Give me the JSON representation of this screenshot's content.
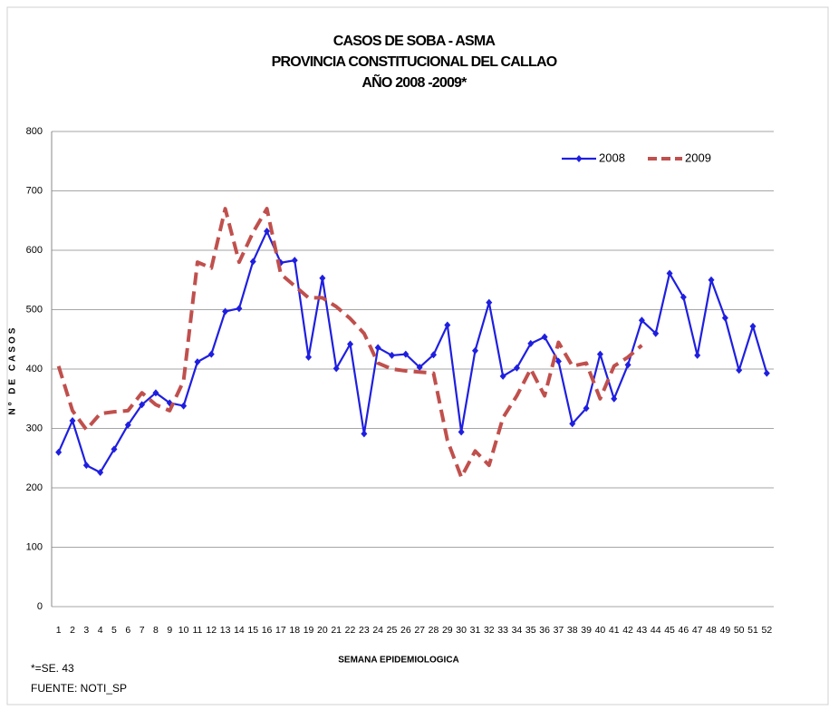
{
  "chart_data": {
    "type": "line",
    "title": [
      "CASOS DE SOBA -  ASMA",
      "PROVINCIA CONSTITUCIONAL DEL CALLAO",
      "AÑO 2008 -2009*"
    ],
    "x_label": "SEMANA EPIDEMIOLOGICA",
    "y_label": "Nº DE CASOS",
    "categories": [
      1,
      2,
      3,
      4,
      5,
      6,
      7,
      8,
      9,
      10,
      11,
      12,
      13,
      14,
      15,
      16,
      17,
      18,
      19,
      20,
      21,
      22,
      23,
      24,
      25,
      26,
      27,
      28,
      29,
      30,
      31,
      32,
      33,
      34,
      35,
      36,
      37,
      38,
      39,
      40,
      41,
      42,
      43,
      44,
      45,
      46,
      47,
      48,
      49,
      50,
      51,
      52
    ],
    "series": [
      {
        "name": "2008",
        "color": "#1f1fe0",
        "style": "solid",
        "marker": "diamond",
        "values": [
          260,
          313,
          238,
          226,
          265,
          306,
          340,
          360,
          343,
          338,
          412,
          425,
          497,
          502,
          581,
          632,
          579,
          583,
          420,
          553,
          401,
          442,
          291,
          436,
          423,
          425,
          403,
          424,
          474,
          294,
          431,
          512,
          388,
          402,
          443,
          454,
          413,
          308,
          334,
          425,
          350,
          407,
          482,
          460,
          561,
          521,
          423,
          550,
          486,
          398,
          472,
          393
        ]
      },
      {
        "name": "2009",
        "color": "#c0504d",
        "style": "dashed",
        "values": [
          405,
          330,
          298,
          325,
          328,
          330,
          360,
          340,
          330,
          380,
          580,
          570,
          670,
          580,
          630,
          670,
          560,
          540,
          520,
          520,
          505,
          485,
          460,
          410,
          400,
          397,
          395,
          393,
          280,
          218,
          262,
          238,
          318,
          355,
          400,
          355,
          445,
          405,
          410,
          350,
          405,
          420,
          440,
          null,
          null,
          null,
          null,
          null,
          null,
          null,
          null,
          null
        ]
      }
    ],
    "ylim": [
      0,
      800
    ],
    "yticks": [
      0,
      100,
      200,
      300,
      400,
      500,
      600,
      700,
      800
    ],
    "grid": true,
    "legend": "top-right",
    "annotations": [
      "*=SE. 43",
      "FUENTE: NOTI_SP"
    ]
  }
}
